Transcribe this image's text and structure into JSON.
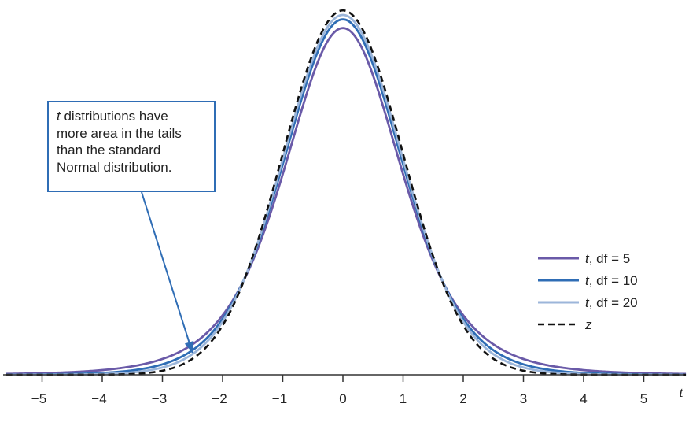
{
  "chart_data": {
    "type": "line",
    "xlabel": "t",
    "xlim": [
      -5.6,
      5.7
    ],
    "ylim": [
      0,
      0.41
    ],
    "xticks": [
      -5,
      -4,
      -3,
      -2,
      -1,
      0,
      1,
      2,
      3,
      4,
      5
    ],
    "xtick_labels": [
      "−5",
      "−4",
      "−3",
      "−2",
      "−1",
      "0",
      "1",
      "2",
      "3",
      "4",
      "5"
    ],
    "series": [
      {
        "name": "t, df = 5",
        "df": 5,
        "color": "#6a5aa8",
        "style": "solid"
      },
      {
        "name": "t, df = 10",
        "df": 10,
        "color": "#2f6db5",
        "style": "solid"
      },
      {
        "name": "t, df = 20",
        "df": 20,
        "color": "#9cb6da",
        "style": "solid"
      },
      {
        "name": "z",
        "df": null,
        "color": "#111111",
        "style": "dashed"
      }
    ],
    "legend": {
      "placement": "right",
      "items": [
        {
          "italic": "t",
          "rest": ", df = 5"
        },
        {
          "italic": "t",
          "rest": ", df = 10"
        },
        {
          "italic": "t",
          "rest": ", df = 20"
        },
        {
          "italic": "z",
          "rest": ""
        }
      ]
    },
    "annotation": {
      "italic": "t",
      "text": " distributions have more area in the tails than the standard Normal distribution.",
      "lines": [
        "t distributions have",
        "more area in the tails",
        "than the standard",
        "Normal distribution."
      ],
      "arrow_target": [
        -2.5,
        0.012
      ],
      "color": "#2f6db5"
    }
  }
}
